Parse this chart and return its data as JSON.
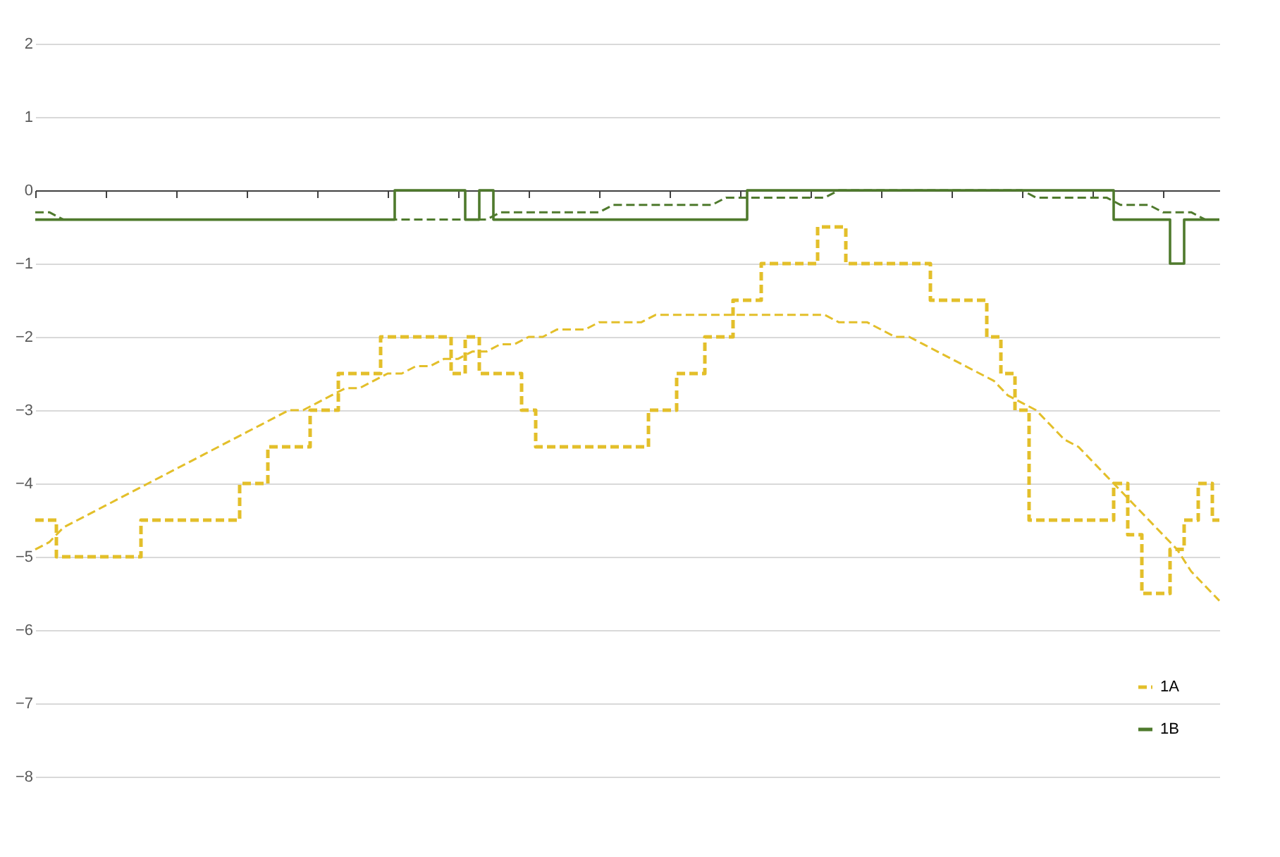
{
  "chart_data": {
    "type": "line",
    "categories": [
      null,
      null,
      null,
      null,
      null,
      null,
      null,
      null,
      null,
      null,
      null,
      null,
      null,
      null,
      null,
      null,
      null,
      null,
      null,
      null,
      null,
      null,
      null,
      null,
      null,
      null,
      null,
      null,
      null,
      null,
      null,
      null,
      null,
      null,
      null,
      null,
      null,
      null,
      null,
      null,
      null,
      null,
      null,
      null,
      null,
      null,
      null,
      null,
      null,
      null,
      null,
      null,
      null,
      null,
      null,
      null,
      null,
      null,
      null,
      null,
      null,
      null,
      null,
      null,
      null,
      null,
      null,
      null,
      null,
      null,
      null,
      null,
      null,
      null,
      null,
      null,
      null,
      null,
      null,
      null,
      null,
      null,
      null,
      null,
      null
    ],
    "series": [
      {
        "name": "1A",
        "type": "step",
        "line_style": "dashed",
        "color": "#e3bf2a",
        "values": [
          -4.5,
          -4.5,
          -5.0,
          -5.0,
          -5.0,
          -5.0,
          -5.0,
          -5.0,
          -4.5,
          -4.5,
          -4.5,
          -4.5,
          -4.5,
          -4.5,
          -4.5,
          -4.0,
          -4.0,
          -3.5,
          -3.5,
          -3.5,
          -3.0,
          -3.0,
          -2.5,
          -2.5,
          -2.5,
          -2.0,
          -2.0,
          -2.0,
          -2.0,
          -2.0,
          -2.5,
          -2.0,
          -2.5,
          -2.5,
          -2.5,
          -3.0,
          -3.5,
          -3.5,
          -3.5,
          -3.5,
          -3.5,
          -3.5,
          -3.5,
          -3.5,
          -3.0,
          -3.0,
          -2.5,
          -2.5,
          -2.0,
          -2.0,
          -1.5,
          -1.5,
          -1.0,
          -1.0,
          -1.0,
          -1.0,
          -0.5,
          -0.5,
          -1.0,
          -1.0,
          -1.0,
          -1.0,
          -1.0,
          -1.0,
          -1.5,
          -1.5,
          -1.5,
          -1.5,
          -2.0,
          -2.5,
          -3.0,
          -4.5,
          -4.5,
          -4.5,
          -4.5,
          -4.5,
          -4.5,
          -4.0,
          -4.7,
          -5.5,
          -5.5,
          -4.9,
          -4.5,
          -4.0,
          -4.5
        ]
      },
      {
        "name": "1B",
        "type": "step",
        "line_style": "solid",
        "color": "#4f7a2d",
        "values": [
          -0.4,
          -0.4,
          -0.4,
          -0.4,
          -0.4,
          -0.4,
          -0.4,
          -0.4,
          -0.4,
          -0.4,
          -0.4,
          -0.4,
          -0.4,
          -0.4,
          -0.4,
          -0.4,
          -0.4,
          -0.4,
          -0.4,
          -0.4,
          -0.4,
          -0.4,
          -0.4,
          -0.4,
          -0.4,
          -0.4,
          0,
          0,
          0,
          0,
          0,
          -0.4,
          0,
          -0.4,
          -0.4,
          -0.4,
          -0.4,
          -0.4,
          -0.4,
          -0.4,
          -0.4,
          -0.4,
          -0.4,
          -0.4,
          -0.4,
          -0.4,
          -0.4,
          -0.4,
          -0.4,
          -0.4,
          -0.4,
          0,
          0,
          0,
          0,
          0,
          0,
          0,
          0,
          0,
          0,
          0,
          0,
          0,
          0,
          0,
          0,
          0,
          0,
          0,
          0,
          0,
          0,
          0,
          0,
          0,
          0,
          -0.4,
          -0.4,
          -0.4,
          -0.4,
          -1.0,
          -0.4,
          -0.4,
          -0.4
        ]
      },
      {
        "type": "line",
        "line_style": "dashed",
        "color": "#e3bf2a",
        "values": [
          -4.9,
          -4.8,
          -4.6,
          -4.5,
          -4.4,
          -4.3,
          -4.2,
          -4.1,
          -4.0,
          -3.9,
          -3.8,
          -3.7,
          -3.6,
          -3.5,
          -3.4,
          -3.3,
          -3.2,
          -3.1,
          -3.0,
          -3.0,
          -2.9,
          -2.8,
          -2.7,
          -2.7,
          -2.6,
          -2.5,
          -2.5,
          -2.4,
          -2.4,
          -2.3,
          -2.3,
          -2.2,
          -2.2,
          -2.1,
          -2.1,
          -2.0,
          -2.0,
          -1.9,
          -1.9,
          -1.9,
          -1.8,
          -1.8,
          -1.8,
          -1.8,
          -1.7,
          -1.7,
          -1.7,
          -1.7,
          -1.7,
          -1.7,
          -1.7,
          -1.7,
          -1.7,
          -1.7,
          -1.7,
          -1.7,
          -1.7,
          -1.8,
          -1.8,
          -1.8,
          -1.9,
          -2.0,
          -2.0,
          -2.1,
          -2.2,
          -2.3,
          -2.4,
          -2.5,
          -2.6,
          -2.8,
          -2.9,
          -3.0,
          -3.2,
          -3.4,
          -3.5,
          -3.7,
          -3.9,
          -4.1,
          -4.3,
          -4.5,
          -4.7,
          -4.9,
          -5.2,
          -5.4,
          -5.6
        ]
      },
      {
        "type": "line",
        "line_style": "dashed",
        "color": "#4f7a2d",
        "values": [
          -0.3,
          -0.3,
          -0.4,
          -0.4,
          -0.4,
          -0.4,
          -0.4,
          -0.4,
          -0.4,
          -0.4,
          -0.4,
          -0.4,
          -0.4,
          -0.4,
          -0.4,
          -0.4,
          -0.4,
          -0.4,
          -0.4,
          -0.4,
          -0.4,
          -0.4,
          -0.4,
          -0.4,
          -0.4,
          -0.4,
          -0.4,
          -0.4,
          -0.4,
          -0.4,
          -0.4,
          -0.4,
          -0.4,
          -0.3,
          -0.3,
          -0.3,
          -0.3,
          -0.3,
          -0.3,
          -0.3,
          -0.3,
          -0.2,
          -0.2,
          -0.2,
          -0.2,
          -0.2,
          -0.2,
          -0.2,
          -0.2,
          -0.1,
          -0.1,
          -0.1,
          -0.1,
          -0.1,
          -0.1,
          -0.1,
          -0.1,
          0,
          0,
          0,
          0,
          0,
          0,
          0,
          0,
          0,
          0,
          0,
          0,
          0,
          0,
          -0.1,
          -0.1,
          -0.1,
          -0.1,
          -0.1,
          -0.1,
          -0.2,
          -0.2,
          -0.2,
          -0.3,
          -0.3,
          -0.3,
          -0.4,
          -0.4
        ]
      }
    ],
    "ylim": [
      -8,
      2
    ],
    "yticks": [
      2,
      1,
      0,
      -1,
      -2,
      -3,
      -4,
      -5,
      -6,
      -7,
      -8
    ],
    "grid": "y",
    "legend": "bottom right",
    "tick_labels": "y"
  }
}
